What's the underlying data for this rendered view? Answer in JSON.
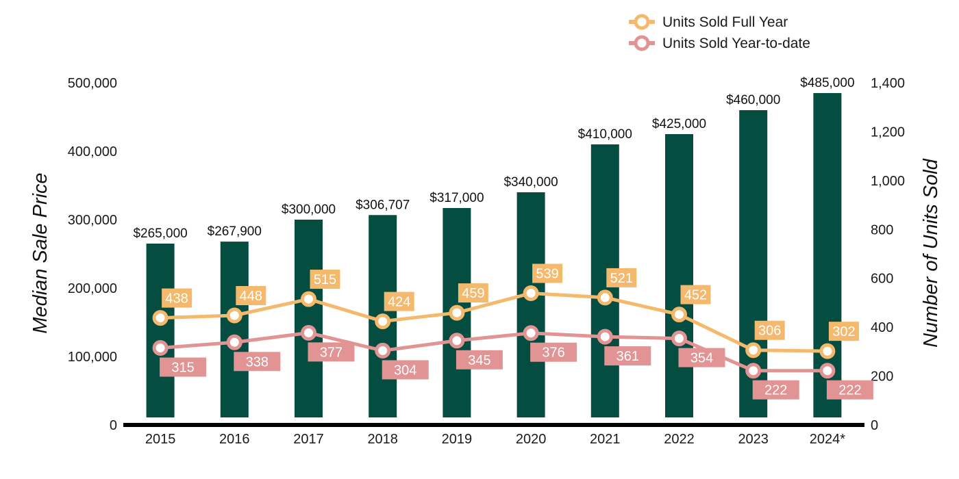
{
  "chart_data": {
    "type": "bar",
    "categories": [
      "2015",
      "2016",
      "2017",
      "2018",
      "2019",
      "2020",
      "2021",
      "2022",
      "2023",
      "2024*"
    ],
    "bar_series": {
      "values": [
        265000,
        267900,
        300000,
        306707,
        317000,
        340000,
        410000,
        425000,
        460000,
        485000
      ],
      "value_labels": [
        "$265,000",
        "$267,900",
        "$300,000",
        "$306,707",
        "$317,000",
        "$340,000",
        "$410,000",
        "$425,000",
        "$460,000",
        "$485,000"
      ],
      "color": "#044d40",
      "axis": "left"
    },
    "series": [
      {
        "name": "Units Sold Full Year",
        "type": "line",
        "axis": "right",
        "values": [
          438,
          448,
          515,
          424,
          459,
          539,
          521,
          452,
          306,
          302
        ],
        "color": "#f4b96c",
        "label_position": "above-right"
      },
      {
        "name": "Units Sold Year-to-date",
        "type": "line",
        "axis": "right",
        "values": [
          315,
          338,
          377,
          304,
          345,
          376,
          361,
          354,
          222,
          222
        ],
        "color": "#e29393",
        "label_position": "below-right"
      }
    ],
    "ylabel": "Median Sale Price",
    "y2label": "Number of Units Sold",
    "ylim": [
      0,
      500000
    ],
    "y2lim": [
      0,
      1400
    ],
    "yticks": [
      "0",
      "100,000",
      "200,000",
      "300,000",
      "400,000",
      "500,000"
    ],
    "y2ticks": [
      "0",
      "200",
      "400",
      "600",
      "800",
      "1,000",
      "1,200",
      "1,400"
    ],
    "grid": false,
    "legend": "top-right"
  }
}
